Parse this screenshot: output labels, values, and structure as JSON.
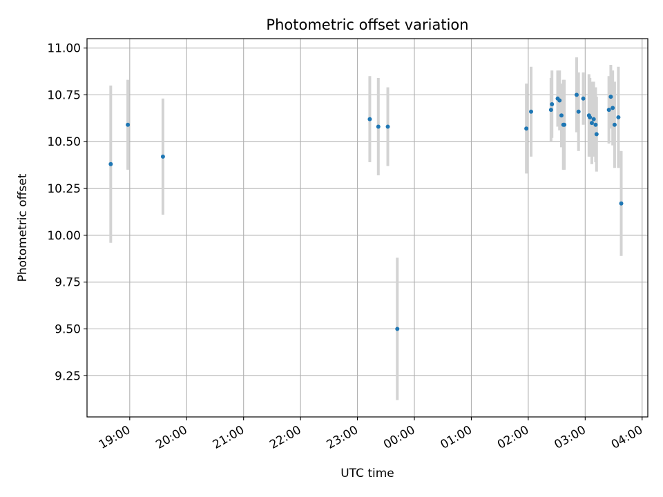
{
  "chart_data": {
    "type": "scatter",
    "title": "Photometric offset variation",
    "xlabel": "UTC time",
    "ylabel": "Photometric offset",
    "x_unit": "UTC time (HH:MM)",
    "x_ticks": [
      "19:00",
      "20:00",
      "21:00",
      "22:00",
      "23:00",
      "00:00",
      "01:00",
      "02:00",
      "03:00",
      "04:00"
    ],
    "y_ticks": [
      "9.25",
      "9.50",
      "9.75",
      "10.00",
      "10.25",
      "10.50",
      "10.75",
      "11.00"
    ],
    "xlim": [
      "18:15",
      "04:06"
    ],
    "ylim": [
      9.03,
      11.05
    ],
    "grid": true,
    "marker_color": "#1f77b4",
    "errorbar_color": "#d3d3d3",
    "series": [
      {
        "points": [
          {
            "x": "18:40",
            "y": 10.38,
            "yerr": 0.42
          },
          {
            "x": "18:58",
            "y": 10.59,
            "yerr": 0.24
          },
          {
            "x": "19:35",
            "y": 10.42,
            "yerr": 0.31
          },
          {
            "x": "23:13",
            "y": 10.62,
            "yerr": 0.23
          },
          {
            "x": "23:22",
            "y": 10.58,
            "yerr": 0.26
          },
          {
            "x": "23:32",
            "y": 10.58,
            "yerr": 0.21
          },
          {
            "x": "23:42",
            "y": 9.5,
            "yerr": 0.38
          },
          {
            "x": "01:58",
            "y": 10.57,
            "yerr": 0.24
          },
          {
            "x": "02:03",
            "y": 10.66,
            "yerr": 0.24
          },
          {
            "x": "02:24",
            "y": 10.67,
            "yerr": 0.17
          },
          {
            "x": "02:25",
            "y": 10.7,
            "yerr": 0.18
          },
          {
            "x": "02:31",
            "y": 10.73,
            "yerr": 0.15
          },
          {
            "x": "02:33",
            "y": 10.72,
            "yerr": 0.16
          },
          {
            "x": "02:35",
            "y": 10.64,
            "yerr": 0.17
          },
          {
            "x": "02:37",
            "y": 10.59,
            "yerr": 0.24
          },
          {
            "x": "02:38",
            "y": 10.59,
            "yerr": 0.24
          },
          {
            "x": "02:51",
            "y": 10.75,
            "yerr": 0.2
          },
          {
            "x": "02:53",
            "y": 10.66,
            "yerr": 0.21
          },
          {
            "x": "02:58",
            "y": 10.73,
            "yerr": 0.14
          },
          {
            "x": "03:04",
            "y": 10.64,
            "yerr": 0.22
          },
          {
            "x": "03:05",
            "y": 10.63,
            "yerr": 0.21
          },
          {
            "x": "03:07",
            "y": 10.6,
            "yerr": 0.22
          },
          {
            "x": "03:09",
            "y": 10.62,
            "yerr": 0.2
          },
          {
            "x": "03:11",
            "y": 10.59,
            "yerr": 0.2
          },
          {
            "x": "03:12",
            "y": 10.54,
            "yerr": 0.2
          },
          {
            "x": "03:25",
            "y": 10.67,
            "yerr": 0.18
          },
          {
            "x": "03:27",
            "y": 10.74,
            "yerr": 0.17
          },
          {
            "x": "03:29",
            "y": 10.68,
            "yerr": 0.2
          },
          {
            "x": "03:31",
            "y": 10.59,
            "yerr": 0.23
          },
          {
            "x": "03:35",
            "y": 10.63,
            "yerr": 0.27
          },
          {
            "x": "03:38",
            "y": 10.17,
            "yerr": 0.28
          }
        ]
      }
    ]
  }
}
